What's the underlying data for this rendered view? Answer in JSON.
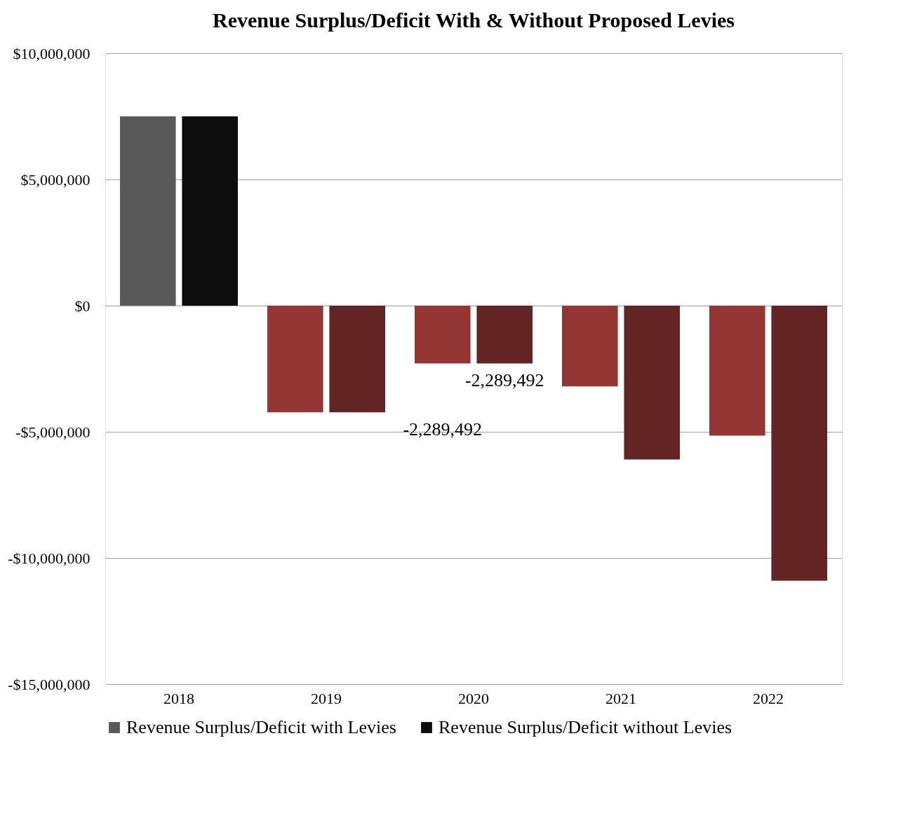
{
  "chart_data": {
    "type": "bar",
    "title": "Revenue Surplus/Deficit With & Without Proposed Levies",
    "categories": [
      "2018",
      "2019",
      "2020",
      "2021",
      "2022"
    ],
    "series": [
      {
        "name": "Revenue Surplus/Deficit with Levies",
        "color": "#595959",
        "colors": [
          "#595959",
          "#943634",
          "#943634",
          "#943634",
          "#943634"
        ],
        "values": [
          7500000,
          -4230000,
          -2289492,
          -3200000,
          -5150000
        ],
        "value_labels": [
          null,
          null,
          "-2,289,492",
          null,
          null
        ]
      },
      {
        "name": "Revenue Surplus/Deficit without Levies",
        "color": "#0d0d0d",
        "colors": [
          "#0d0d0d",
          "#632523",
          "#632523",
          "#632523",
          "#632523"
        ],
        "values": [
          7500000,
          -4230000,
          -2289492,
          -6100000,
          -10900000
        ],
        "value_labels": [
          null,
          null,
          "-2,289,492",
          null,
          null
        ]
      }
    ],
    "ylim": [
      -15000000,
      10000000
    ],
    "yticks": [
      {
        "value": -15000000,
        "label": "-$15,000,000"
      },
      {
        "value": -10000000,
        "label": "-$10,000,000"
      },
      {
        "value": -5000000,
        "label": "-$5,000,000"
      },
      {
        "value": 0,
        "label": "$0"
      },
      {
        "value": 5000000,
        "label": "$5,000,000"
      },
      {
        "value": 10000000,
        "label": "$10,000,000"
      }
    ],
    "grid": "y",
    "legend": "bottom"
  }
}
